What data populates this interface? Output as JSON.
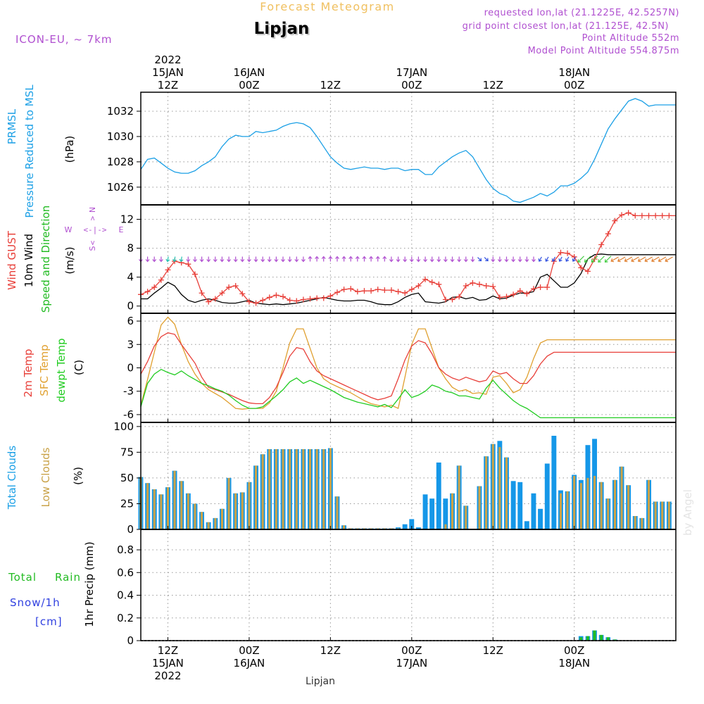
{
  "header": {
    "title": "Forecast Meteogram",
    "location": "Lipjan",
    "model": "ICON-EU, ~ 7km",
    "requested": "requested lon,lat (21.1225E, 42.5257N)",
    "grid_point": "grid point closest lon,lat (21.125E, 42.5N)",
    "point_altitude": "Point Altitude 552m",
    "model_altitude": "Model Point Altitude 554.875m",
    "footer_location": "Lipjan",
    "credit": "by Angel"
  },
  "time_axis": {
    "top_labels": [
      {
        "hour": 0,
        "lines": [
          "2022",
          "15JAN",
          "12Z"
        ]
      },
      {
        "hour": 12,
        "lines": [
          "16JAN",
          "00Z"
        ]
      },
      {
        "hour": 24,
        "lines": [
          "12Z"
        ]
      },
      {
        "hour": 36,
        "lines": [
          "17JAN",
          "00Z"
        ]
      },
      {
        "hour": 48,
        "lines": [
          "12Z"
        ]
      },
      {
        "hour": 60,
        "lines": [
          "18JAN",
          "00Z"
        ]
      }
    ],
    "bottom_labels": [
      {
        "hour": 0,
        "lines": [
          "12Z",
          "15JAN",
          "2022"
        ]
      },
      {
        "hour": 12,
        "lines": [
          "00Z",
          "16JAN"
        ]
      },
      {
        "hour": 24,
        "lines": [
          "12Z"
        ]
      },
      {
        "hour": 36,
        "lines": [
          "00Z",
          "17JAN"
        ]
      },
      {
        "hour": 48,
        "lines": [
          "12Z"
        ]
      },
      {
        "hour": 60,
        "lines": [
          "00Z",
          "18JAN"
        ]
      }
    ]
  },
  "panel_labels": {
    "pressure": {
      "lines": [
        "PRMSL",
        "Pressure Reduced to MSL"
      ],
      "unit": "(hPa)"
    },
    "wind": {
      "gust": "Wind GUST",
      "wind10m": "10m Wind",
      "speed_dir": "Speed and Direction",
      "unit": "(m/s)",
      "compass": {
        "n": "N",
        "s": "S",
        "w": "W",
        "e": "E"
      }
    },
    "temp": {
      "t2m": "2m Temp",
      "sfc": "SFC Temp",
      "dew": "dewpt Temp",
      "unit": "(C)"
    },
    "clouds": {
      "total": "Total Clouds",
      "low": "Low Clouds",
      "unit": "(%)"
    },
    "precip": {
      "total": "Total",
      "rain": "Rain",
      "snow": "Snow/1h",
      "snow_unit": "[cm]",
      "ylabel": "1hr Precip (mm)"
    }
  },
  "colors": {
    "pressure": "#1ca0e6",
    "gust": "#e8403a",
    "wind": "#000000",
    "t2m": "#e8403a",
    "sfc": "#e0a030",
    "dew": "#22cc22",
    "total_cloud": "#1597e8",
    "low_cloud": "#c9a248",
    "rain": "#22bb22",
    "snow": "#3040e0",
    "purple": "#b050d0",
    "title": "#f0c060"
  },
  "chart_data": [
    {
      "type": "line",
      "name": "pressure",
      "title": "PRMSL Pressure Reduced to MSL",
      "ylabel": "(hPa)",
      "ylim": [
        1024.6,
        1033.5
      ],
      "yticks": [
        1026,
        1028,
        1030,
        1032
      ],
      "x_hours": [
        -4,
        -3,
        -2,
        -1,
        0,
        1,
        2,
        3,
        4,
        5,
        6,
        7,
        8,
        9,
        10,
        11,
        12,
        13,
        14,
        15,
        16,
        17,
        18,
        19,
        20,
        21,
        22,
        23,
        24,
        25,
        26,
        27,
        28,
        29,
        30,
        31,
        32,
        33,
        34,
        35,
        36,
        37,
        38,
        39,
        40,
        41,
        42,
        43,
        44,
        45,
        46,
        47,
        48,
        49,
        50,
        51,
        52,
        53,
        54,
        55,
        56,
        57,
        58,
        59,
        60,
        61,
        62,
        63,
        64,
        65,
        66,
        67,
        68,
        69,
        70,
        71,
        72,
        73,
        74,
        75
      ],
      "values": [
        1027.4,
        1028.2,
        1028.3,
        1027.9,
        1027.5,
        1027.2,
        1027.1,
        1027.1,
        1027.3,
        1027.7,
        1028.0,
        1028.4,
        1029.2,
        1029.8,
        1030.1,
        1030.0,
        1030.0,
        1030.4,
        1030.3,
        1030.4,
        1030.5,
        1030.8,
        1031.0,
        1031.1,
        1031.0,
        1030.7,
        1030.0,
        1029.2,
        1028.4,
        1027.9,
        1027.5,
        1027.4,
        1027.5,
        1027.6,
        1027.5,
        1027.5,
        1027.4,
        1027.5,
        1027.5,
        1027.3,
        1027.4,
        1027.4,
        1027.0,
        1027.0,
        1027.6,
        1028.0,
        1028.4,
        1028.7,
        1028.9,
        1028.4,
        1027.5,
        1026.6,
        1025.9,
        1025.5,
        1025.3,
        1024.9,
        1024.8,
        1025.0,
        1025.2,
        1025.5,
        1025.3,
        1025.6,
        1026.1,
        1026.1,
        1026.3,
        1026.7,
        1027.2,
        1028.2,
        1029.4,
        1030.6,
        1031.4,
        1032.1,
        1032.8,
        1033.0,
        1032.8,
        1032.4,
        1032.5,
        1032.5,
        1032.5,
        1032.5
      ],
      "x_range_hours": [
        -4,
        75
      ]
    },
    {
      "type": "line",
      "name": "wind",
      "title": "Wind GUST / 10m Wind Speed and Direction",
      "ylabel": "(m/s)",
      "ylim": [
        -1,
        14
      ],
      "yticks": [
        0,
        4,
        8,
        12
      ],
      "x_hours": [
        -4,
        -3,
        -2,
        -1,
        0,
        1,
        2,
        3,
        4,
        5,
        6,
        7,
        8,
        9,
        10,
        11,
        12,
        13,
        14,
        15,
        16,
        17,
        18,
        19,
        20,
        21,
        22,
        23,
        24,
        25,
        26,
        27,
        28,
        29,
        30,
        31,
        32,
        33,
        34,
        35,
        36,
        37,
        38,
        39,
        40,
        41,
        42,
        43,
        44,
        45,
        46,
        47,
        48,
        49,
        50,
        51,
        52,
        53,
        54,
        55,
        56,
        57,
        58,
        59,
        60,
        61,
        62,
        63,
        64,
        65,
        66,
        67,
        68,
        69,
        70,
        71,
        72,
        73,
        74,
        75
      ],
      "gust": [
        1.6,
        2.0,
        2.6,
        3.6,
        5.0,
        6.2,
        6.0,
        5.8,
        4.4,
        1.8,
        0.6,
        1.0,
        1.8,
        2.6,
        2.8,
        1.7,
        0.6,
        0.4,
        0.8,
        1.2,
        1.5,
        1.3,
        0.8,
        0.7,
        0.9,
        1.0,
        1.1,
        1.1,
        1.4,
        1.9,
        2.3,
        2.4,
        2.0,
        2.1,
        2.1,
        2.3,
        2.2,
        2.2,
        2.0,
        1.8,
        2.3,
        2.8,
        3.7,
        3.3,
        3.0,
        0.9,
        0.9,
        1.3,
        2.8,
        3.2,
        3.0,
        2.8,
        2.7,
        1.2,
        1.3,
        1.6,
        2.1,
        1.7,
        2.4,
        2.6,
        2.6,
        6.2,
        7.4,
        7.3,
        6.8,
        5.3,
        4.8,
        6.5,
        8.5,
        10.0,
        11.8,
        12.6,
        12.9,
        12.5,
        12.5,
        12.5,
        12.5,
        12.5,
        12.5,
        12.5
      ],
      "wind10m": [
        1.0,
        1.0,
        1.8,
        2.5,
        3.3,
        2.8,
        1.6,
        0.8,
        0.5,
        0.8,
        1.0,
        0.8,
        0.5,
        0.4,
        0.4,
        0.6,
        0.8,
        0.4,
        0.3,
        0.2,
        0.3,
        0.2,
        0.3,
        0.4,
        0.6,
        0.8,
        1.0,
        1.2,
        1.0,
        0.8,
        0.7,
        0.7,
        0.8,
        0.8,
        0.6,
        0.3,
        0.2,
        0.2,
        0.6,
        1.2,
        1.6,
        1.8,
        0.6,
        0.5,
        0.4,
        0.6,
        1.2,
        1.3,
        1.0,
        1.2,
        0.8,
        0.9,
        1.4,
        1.0,
        1.1,
        1.5,
        1.8,
        1.8,
        2.0,
        4.0,
        4.4,
        3.5,
        2.6,
        2.6,
        3.2,
        4.5,
        6.5,
        7.1,
        7.2,
        7.1,
        7.1,
        7.1,
        7.1,
        7.1,
        7.1,
        7.1,
        7.1,
        7.1,
        7.1,
        7.1
      ],
      "barb_row_value": 6.5,
      "x_range_hours": [
        -4,
        75
      ]
    },
    {
      "type": "line",
      "name": "temperature",
      "title": "2m Temp / SFC Temp / dewpt Temp",
      "ylabel": "(C)",
      "ylim": [
        -7,
        7
      ],
      "yticks": [
        -6,
        -3,
        0,
        3,
        6
      ],
      "x_hours": [
        -4,
        -3,
        -2,
        -1,
        0,
        1,
        2,
        3,
        4,
        5,
        6,
        7,
        8,
        9,
        10,
        11,
        12,
        13,
        14,
        15,
        16,
        17,
        18,
        19,
        20,
        21,
        22,
        23,
        24,
        25,
        26,
        27,
        28,
        29,
        30,
        31,
        32,
        33,
        34,
        35,
        36,
        37,
        38,
        39,
        40,
        41,
        42,
        43,
        44,
        45,
        46,
        47,
        48,
        49,
        50,
        51,
        52,
        53,
        54,
        55,
        56,
        57,
        58,
        59,
        60,
        61,
        62,
        63,
        64,
        65,
        66,
        67,
        68,
        69,
        70,
        71,
        72,
        73,
        74,
        75
      ],
      "t2m": [
        -0.8,
        0.8,
        2.8,
        4.0,
        4.5,
        4.3,
        3.0,
        1.8,
        0.6,
        -1.2,
        -2.5,
        -2.8,
        -3.1,
        -3.4,
        -3.8,
        -4.2,
        -4.5,
        -4.6,
        -4.6,
        -3.8,
        -2.5,
        -0.6,
        1.5,
        2.6,
        2.4,
        0.8,
        -0.4,
        -1.0,
        -1.4,
        -1.8,
        -2.2,
        -2.6,
        -3.0,
        -3.4,
        -3.8,
        -4.1,
        -3.9,
        -3.6,
        -1.4,
        1.0,
        2.8,
        3.5,
        3.2,
        1.8,
        0.0,
        -0.8,
        -1.3,
        -1.6,
        -1.2,
        -1.5,
        -1.8,
        -1.6,
        -0.4,
        -0.8,
        -0.6,
        -1.4,
        -2.0,
        -2.0,
        -1.0,
        0.5,
        1.5,
        2.0,
        2.0,
        2.0,
        2.0,
        2.0,
        2.0,
        2.0,
        2.0,
        2.0,
        2.0,
        2.0,
        2.0,
        2.0,
        2.0,
        2.0,
        2.0,
        2.0,
        2.0,
        2.0
      ],
      "sfc": [
        -4.8,
        -1.5,
        2.0,
        5.5,
        6.5,
        5.6,
        3.0,
        0.8,
        -0.8,
        -2.0,
        -2.8,
        -3.3,
        -3.8,
        -4.5,
        -5.2,
        -5.3,
        -5.2,
        -5.2,
        -5.2,
        -4.5,
        -3.0,
        0.0,
        3.2,
        5.0,
        5.0,
        2.5,
        0.0,
        -1.4,
        -2.0,
        -2.4,
        -2.8,
        -3.2,
        -3.7,
        -4.2,
        -4.6,
        -4.8,
        -5.0,
        -4.8,
        -5.2,
        -1.2,
        3.0,
        5.0,
        5.0,
        2.5,
        0.0,
        -1.4,
        -2.5,
        -3.0,
        -2.8,
        -3.3,
        -3.2,
        -3.4,
        -1.2,
        -1.0,
        -2.0,
        -3.2,
        -2.8,
        -1.2,
        1.2,
        3.2,
        3.6,
        3.6,
        3.6,
        3.6,
        3.6,
        3.6,
        3.6,
        3.6,
        3.6,
        3.6,
        3.6,
        3.6,
        3.6,
        3.6,
        3.6,
        3.6,
        3.6,
        3.6,
        3.6,
        3.6
      ],
      "dewpt": [
        -5.0,
        -2.0,
        -0.8,
        -0.2,
        -0.6,
        -0.9,
        -0.4,
        -1.0,
        -1.5,
        -2.0,
        -2.3,
        -2.7,
        -3.0,
        -3.5,
        -4.2,
        -4.8,
        -5.2,
        -5.2,
        -5.0,
        -4.3,
        -3.6,
        -2.8,
        -1.8,
        -1.3,
        -2.0,
        -1.6,
        -2.0,
        -2.4,
        -2.8,
        -3.3,
        -3.8,
        -4.1,
        -4.4,
        -4.6,
        -4.8,
        -5.0,
        -4.7,
        -5.1,
        -4.0,
        -2.8,
        -3.8,
        -3.5,
        -3.0,
        -2.2,
        -2.5,
        -3.0,
        -3.2,
        -3.6,
        -3.6,
        -3.8,
        -4.0,
        -2.6,
        -1.6,
        -2.6,
        -3.4,
        -4.2,
        -4.8,
        -5.2,
        -5.8,
        -6.4,
        -6.4,
        -6.4,
        -6.4,
        -6.4,
        -6.4,
        -6.4,
        -6.4,
        -6.4,
        -6.4,
        -6.4,
        -6.4,
        -6.4,
        -6.4,
        -6.4,
        -6.4,
        -6.4,
        -6.4,
        -6.4,
        -6.4,
        -6.4
      ],
      "x_range_hours": [
        -4,
        75
      ]
    },
    {
      "type": "bar",
      "name": "clouds",
      "title": "Total Clouds / Low Clouds",
      "ylabel": "(%)",
      "ylim": [
        0,
        104
      ],
      "yticks": [
        0,
        25,
        50,
        75,
        100
      ],
      "x_hours": [
        -4,
        -3,
        -2,
        -1,
        0,
        1,
        2,
        3,
        4,
        5,
        6,
        7,
        8,
        9,
        10,
        11,
        12,
        13,
        14,
        15,
        16,
        17,
        18,
        19,
        20,
        21,
        22,
        23,
        24,
        25,
        26,
        27,
        28,
        29,
        30,
        31,
        32,
        33,
        34,
        35,
        36,
        37,
        38,
        39,
        40,
        41,
        42,
        43,
        44,
        45,
        46,
        47,
        48,
        49,
        50,
        51,
        52,
        53,
        54,
        55,
        56,
        57,
        58,
        59,
        60,
        61,
        62,
        63,
        64,
        65,
        66,
        67,
        68,
        69,
        70,
        71,
        72,
        73,
        74,
        75
      ],
      "total": [
        51,
        45,
        39,
        34,
        41,
        57,
        47,
        35,
        25,
        17,
        7,
        11,
        20,
        50,
        35,
        36,
        46,
        62,
        73,
        78,
        78,
        78,
        78,
        78,
        78,
        78,
        78,
        78,
        79,
        32,
        4,
        1,
        1,
        1,
        1,
        1,
        1,
        1,
        2,
        5,
        10,
        2,
        34,
        30,
        65,
        30,
        35,
        62,
        23,
        0,
        42,
        71,
        83,
        86,
        70,
        47,
        46,
        8,
        35,
        20,
        64,
        91,
        38,
        37,
        53,
        48,
        82,
        88,
        46,
        30,
        48,
        61,
        43,
        13,
        11,
        48,
        27,
        27,
        27,
        27
      ],
      "low": [
        51,
        45,
        39,
        34,
        41,
        57,
        47,
        35,
        25,
        17,
        7,
        11,
        20,
        50,
        35,
        36,
        46,
        62,
        73,
        78,
        78,
        78,
        78,
        78,
        78,
        78,
        78,
        78,
        79,
        32,
        4,
        1,
        1,
        1,
        1,
        1,
        1,
        1,
        1,
        0,
        0,
        0,
        0,
        0,
        0,
        5,
        35,
        62,
        23,
        0,
        42,
        71,
        83,
        80,
        70,
        0,
        0,
        0,
        0,
        0,
        0,
        0,
        35,
        37,
        52,
        45,
        50,
        52,
        46,
        30,
        48,
        61,
        43,
        13,
        11,
        48,
        27,
        27,
        27,
        27
      ],
      "x_range_hours": [
        -4,
        75
      ]
    },
    {
      "type": "bar",
      "name": "precipitation",
      "title": "1hr Precip",
      "ylabel": "1hr Precip (mm)",
      "ylim": [
        0,
        0.98
      ],
      "yticks": [
        0,
        0.2,
        0.4,
        0.6,
        0.8
      ],
      "ytick_labels": [
        "0",
        "0.2",
        "0.4",
        "0.6",
        "0.8"
      ],
      "x_hours": [
        61,
        62,
        63,
        64,
        65,
        66
      ],
      "total": [
        0.04,
        0.04,
        0.09,
        0.05,
        0.03,
        0.01
      ],
      "rain": [
        0.03,
        0.04,
        0.09,
        0.05,
        0.03,
        0.01
      ],
      "x_range_hours": [
        -4,
        75
      ]
    }
  ]
}
